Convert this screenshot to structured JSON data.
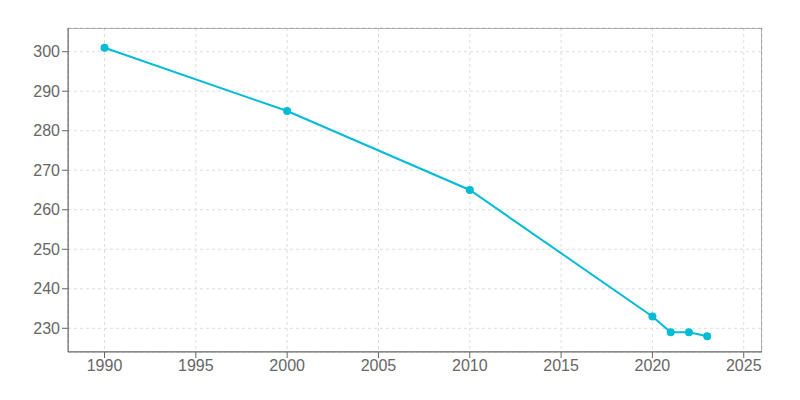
{
  "chart_data": {
    "type": "line",
    "x": [
      1990,
      2000,
      2010,
      2020,
      2021,
      2022,
      2023
    ],
    "values": [
      301,
      285,
      265,
      233,
      229,
      229,
      228
    ],
    "color": "#00bcd4",
    "marker": "circle",
    "xlim": [
      1988,
      2026
    ],
    "ylim": [
      224,
      306
    ],
    "xticks": [
      1990,
      1995,
      2000,
      2005,
      2010,
      2015,
      2020,
      2025
    ],
    "yticks": [
      230,
      240,
      250,
      260,
      270,
      280,
      290,
      300
    ],
    "grid": true
  }
}
